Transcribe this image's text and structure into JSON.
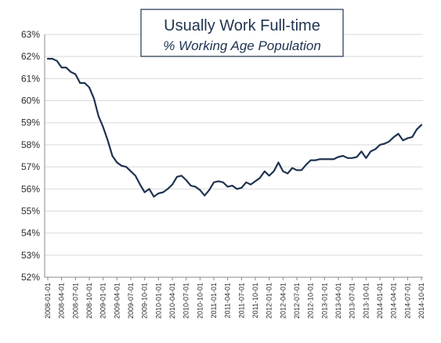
{
  "chart_data": {
    "type": "line",
    "title": "Usually Work Full-time",
    "subtitle": "% Working Age Population",
    "xlabel": "",
    "ylabel": "",
    "ylim": [
      52,
      63
    ],
    "y_ticks": [
      {
        "value": 52,
        "label": "52%"
      },
      {
        "value": 53,
        "label": "53%"
      },
      {
        "value": 54,
        "label": "54%"
      },
      {
        "value": 55,
        "label": "55%"
      },
      {
        "value": 56,
        "label": "56%"
      },
      {
        "value": 57,
        "label": "57%"
      },
      {
        "value": 58,
        "label": "58%"
      },
      {
        "value": 59,
        "label": "59%"
      },
      {
        "value": 60,
        "label": "60%"
      },
      {
        "value": 61,
        "label": "61%"
      },
      {
        "value": 62,
        "label": "62%"
      },
      {
        "value": 63,
        "label": "63%"
      }
    ],
    "x_tick_labels": [
      "2008-01-01",
      "2008-04-01",
      "2008-07-01",
      "2008-10-01",
      "2009-01-01",
      "2009-04-01",
      "2009-07-01",
      "2009-10-01",
      "2010-01-01",
      "2010-04-01",
      "2010-07-01",
      "2010-10-01",
      "2011-01-01",
      "2011-04-01",
      "2011-07-01",
      "2011-10-01",
      "2012-01-01",
      "2012-04-01",
      "2012-07-01",
      "2012-10-01",
      "2013-01-01",
      "2013-04-01",
      "2013-07-01",
      "2013-10-01",
      "2014-01-01",
      "2014-04-01",
      "2014-07-01",
      "2014-10-01"
    ],
    "grid": true,
    "legend": "none",
    "line_color": "#1f3350",
    "series": [
      {
        "x": [
          "2008-01",
          "2008-02",
          "2008-03",
          "2008-04",
          "2008-05",
          "2008-06",
          "2008-07",
          "2008-08",
          "2008-09",
          "2008-10",
          "2008-11",
          "2008-12",
          "2009-01",
          "2009-02",
          "2009-03",
          "2009-04",
          "2009-05",
          "2009-06",
          "2009-07",
          "2009-08",
          "2009-09",
          "2009-10",
          "2009-11",
          "2009-12",
          "2010-01",
          "2010-02",
          "2010-03",
          "2010-04",
          "2010-05",
          "2010-06",
          "2010-07",
          "2010-08",
          "2010-09",
          "2010-10",
          "2010-11",
          "2010-12",
          "2011-01",
          "2011-02",
          "2011-03",
          "2011-04",
          "2011-05",
          "2011-06",
          "2011-07",
          "2011-08",
          "2011-09",
          "2011-10",
          "2011-11",
          "2011-12",
          "2012-01",
          "2012-02",
          "2012-03",
          "2012-04",
          "2012-05",
          "2012-06",
          "2012-07",
          "2012-08",
          "2012-09",
          "2012-10",
          "2012-11",
          "2012-12",
          "2013-01",
          "2013-02",
          "2013-03",
          "2013-04",
          "2013-05",
          "2013-06",
          "2013-07",
          "2013-08",
          "2013-09",
          "2013-10",
          "2013-11",
          "2013-12",
          "2014-01",
          "2014-02",
          "2014-03",
          "2014-04",
          "2014-05",
          "2014-06",
          "2014-07",
          "2014-08",
          "2014-09",
          "2014-10"
        ],
        "values": [
          61.9,
          61.9,
          61.8,
          61.5,
          61.5,
          61.3,
          61.2,
          60.8,
          60.8,
          60.6,
          60.1,
          59.3,
          58.8,
          58.2,
          57.5,
          57.2,
          57.05,
          57.0,
          56.8,
          56.6,
          56.2,
          55.85,
          56.0,
          55.65,
          55.8,
          55.85,
          56.0,
          56.2,
          56.55,
          56.6,
          56.4,
          56.15,
          56.1,
          55.95,
          55.7,
          55.95,
          56.3,
          56.35,
          56.3,
          56.1,
          56.15,
          56.0,
          56.05,
          56.3,
          56.2,
          56.35,
          56.5,
          56.8,
          56.6,
          56.8,
          57.2,
          56.8,
          56.7,
          56.95,
          56.85,
          56.85,
          57.1,
          57.3,
          57.3,
          57.35,
          57.35,
          57.35,
          57.35,
          57.45,
          57.5,
          57.4,
          57.4,
          57.45,
          57.7,
          57.4,
          57.7,
          57.8,
          58.0,
          58.05,
          58.15,
          58.35,
          58.5,
          58.2,
          58.3,
          58.35,
          58.7,
          58.9
        ]
      }
    ]
  }
}
